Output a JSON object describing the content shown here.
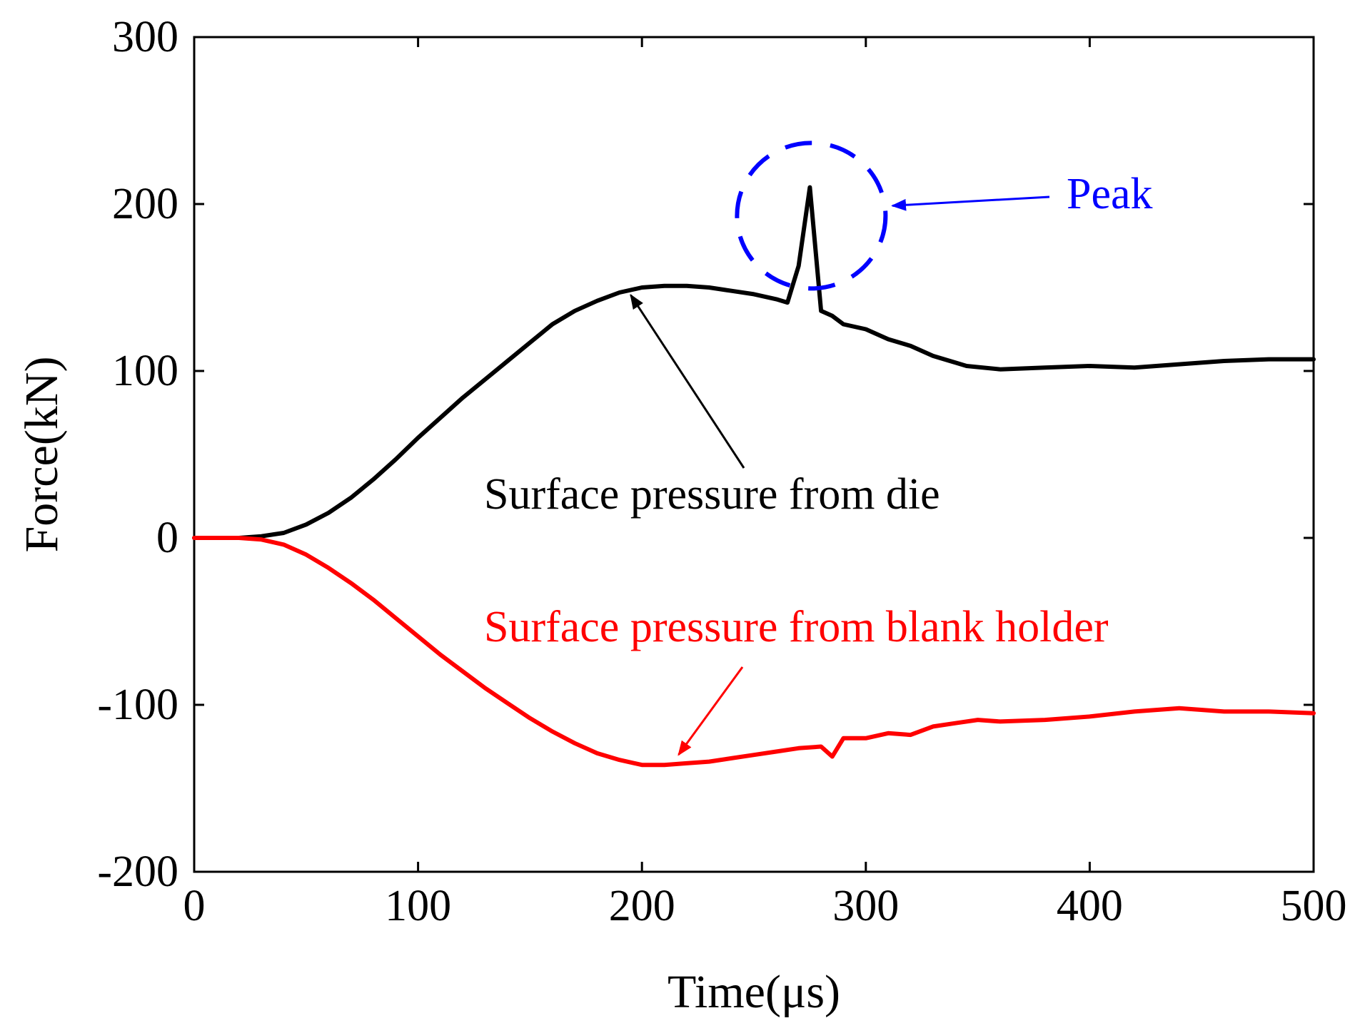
{
  "chart_data": {
    "type": "line",
    "title": "",
    "xlabel": "Time(μs)",
    "ylabel": "Force(kN)",
    "xlim": [
      0,
      500
    ],
    "ylim": [
      -200,
      300
    ],
    "xticks": [
      0,
      100,
      200,
      300,
      400,
      500
    ],
    "yticks": [
      -200,
      -100,
      0,
      100,
      200,
      300
    ],
    "xtick_labels": [
      "0",
      "100",
      "200",
      "300",
      "400",
      "500"
    ],
    "ytick_labels": [
      "-200",
      "-100",
      "0",
      "100",
      "200",
      "300"
    ],
    "grid": false,
    "series": [
      {
        "name": "Surface pressure from die",
        "color": "#000000",
        "x": [
          0,
          20,
          30,
          40,
          50,
          60,
          70,
          80,
          90,
          100,
          110,
          120,
          130,
          140,
          150,
          160,
          170,
          180,
          190,
          200,
          210,
          220,
          230,
          240,
          250,
          260,
          265,
          270,
          275,
          280,
          285,
          290,
          300,
          310,
          320,
          330,
          340,
          345,
          360,
          380,
          400,
          420,
          440,
          460,
          480,
          500
        ],
        "y": [
          0,
          0,
          1,
          3,
          8,
          15,
          24,
          35,
          47,
          60,
          72,
          84,
          95,
          106,
          117,
          128,
          136,
          142,
          147,
          150,
          151,
          151,
          150,
          148,
          146,
          143,
          141,
          163,
          210,
          136,
          133,
          128,
          125,
          119,
          115,
          109,
          105,
          103,
          101,
          102,
          103,
          102,
          104,
          106,
          107,
          107
        ]
      },
      {
        "name": "Surface pressure from blank holder",
        "color": "#ff0000",
        "x": [
          0,
          20,
          30,
          40,
          50,
          60,
          70,
          80,
          90,
          100,
          110,
          120,
          130,
          140,
          150,
          160,
          170,
          180,
          190,
          200,
          210,
          220,
          230,
          240,
          250,
          260,
          270,
          280,
          285,
          290,
          300,
          310,
          320,
          330,
          340,
          350,
          360,
          380,
          400,
          420,
          440,
          460,
          480,
          500
        ],
        "y": [
          0,
          0,
          -1,
          -4,
          -10,
          -18,
          -27,
          -37,
          -48,
          -59,
          -70,
          -80,
          -90,
          -99,
          -108,
          -116,
          -123,
          -129,
          -133,
          -136,
          -136,
          -135,
          -134,
          -132,
          -130,
          -128,
          -126,
          -125,
          -131,
          -120,
          -120,
          -117,
          -118,
          -113,
          -111,
          -109,
          -110,
          -109,
          -107,
          -104,
          -102,
          -104,
          -104,
          -105
        ]
      }
    ],
    "annotations": [
      {
        "text": "Surface pressure from die",
        "color": "#000000",
        "points_to": {
          "x": 195,
          "y": 148
        }
      },
      {
        "text": "Surface pressure from blank holder",
        "color": "#ff0000",
        "points_to": {
          "x": 210,
          "y": -135
        }
      },
      {
        "text": "Peak",
        "color": "#0000ff",
        "points_to": {
          "x": 310,
          "y": 199
        },
        "circled": {
          "x": 275,
          "y": 193
        }
      }
    ]
  }
}
